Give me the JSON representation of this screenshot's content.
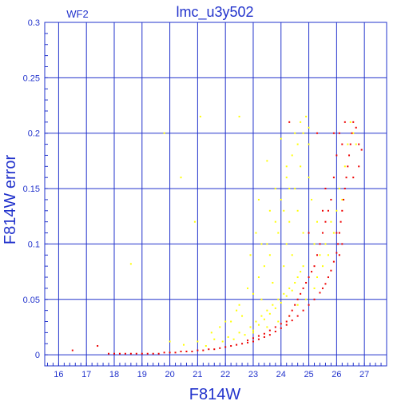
{
  "chart_data": {
    "type": "scatter",
    "title": "lmc_u3y502",
    "corner_label": "WF2",
    "xlabel": "F814W",
    "ylabel": "F814W error",
    "xlim": [
      15.5,
      27.8
    ],
    "ylim": [
      -0.01,
      0.3
    ],
    "xticks": [
      16,
      17,
      18,
      19,
      20,
      21,
      22,
      23,
      24,
      25,
      26,
      27
    ],
    "yticks": [
      0,
      0.05,
      0.1,
      0.15,
      0.2,
      0.25,
      0.3
    ],
    "ytick_labels": [
      "0",
      "0.05",
      "0.1",
      "0.15",
      "0.2",
      "0.25",
      "0.3"
    ],
    "grid": true,
    "colors": {
      "axes": "#2233cc",
      "grid": "#2233cc",
      "series_yellow": "#ffff00",
      "series_red": "#ee0000"
    },
    "series": [
      {
        "color": "#ffff00",
        "points": [
          [
            20.0,
            0.012
          ],
          [
            20.5,
            0.009
          ],
          [
            21.0,
            0.012
          ],
          [
            21.3,
            0.008
          ],
          [
            21.6,
            0.014
          ],
          [
            21.9,
            0.012
          ],
          [
            22.1,
            0.016
          ],
          [
            22.3,
            0.014
          ],
          [
            22.5,
            0.02
          ],
          [
            22.7,
            0.018
          ],
          [
            22.9,
            0.025
          ],
          [
            23.0,
            0.022
          ],
          [
            23.1,
            0.03
          ],
          [
            23.2,
            0.027
          ],
          [
            23.3,
            0.035
          ],
          [
            23.4,
            0.032
          ],
          [
            23.5,
            0.04
          ],
          [
            23.6,
            0.037
          ],
          [
            23.7,
            0.045
          ],
          [
            23.8,
            0.042
          ],
          [
            23.9,
            0.05
          ],
          [
            24.0,
            0.047
          ],
          [
            24.1,
            0.055
          ],
          [
            24.2,
            0.053
          ],
          [
            24.3,
            0.06
          ],
          [
            24.4,
            0.058
          ],
          [
            24.5,
            0.065
          ],
          [
            24.6,
            0.07
          ],
          [
            24.7,
            0.075
          ],
          [
            24.8,
            0.08
          ],
          [
            22.5,
            0.045
          ],
          [
            22.8,
            0.06
          ],
          [
            23.0,
            0.055
          ],
          [
            23.2,
            0.07
          ],
          [
            23.4,
            0.08
          ],
          [
            23.5,
            0.1
          ],
          [
            23.6,
            0.09
          ],
          [
            23.8,
            0.12
          ],
          [
            23.9,
            0.11
          ],
          [
            24.0,
            0.14
          ],
          [
            24.1,
            0.13
          ],
          [
            24.2,
            0.16
          ],
          [
            24.3,
            0.15
          ],
          [
            24.4,
            0.18
          ],
          [
            24.5,
            0.2
          ],
          [
            24.6,
            0.19
          ],
          [
            24.7,
            0.21
          ],
          [
            24.8,
            0.2
          ],
          [
            24.9,
            0.215
          ],
          [
            25.0,
            0.205
          ],
          [
            24.2,
            0.1
          ],
          [
            24.3,
            0.12
          ],
          [
            24.4,
            0.09
          ],
          [
            24.6,
            0.13
          ],
          [
            24.8,
            0.11
          ],
          [
            25.0,
            0.16
          ],
          [
            25.1,
            0.14
          ],
          [
            25.2,
            0.1
          ],
          [
            25.3,
            0.12
          ],
          [
            25.4,
            0.09
          ],
          [
            22.2,
            0.03
          ],
          [
            22.4,
            0.04
          ],
          [
            22.6,
            0.035
          ],
          [
            23.3,
            0.05
          ],
          [
            23.7,
            0.065
          ],
          [
            24.1,
            0.08
          ],
          [
            21.5,
            0.02
          ],
          [
            21.8,
            0.025
          ],
          [
            22.0,
            0.03
          ],
          [
            19.8,
            0.2
          ],
          [
            20.4,
            0.16
          ],
          [
            20.9,
            0.12
          ],
          [
            18.6,
            0.082
          ],
          [
            21.1,
            0.215
          ],
          [
            22.5,
            0.215
          ],
          [
            23.2,
            0.14
          ],
          [
            23.5,
            0.175
          ],
          [
            24.0,
            0.195
          ],
          [
            25.5,
            0.08
          ],
          [
            25.6,
            0.1
          ],
          [
            25.7,
            0.09
          ],
          [
            25.8,
            0.12
          ],
          [
            25.9,
            0.11
          ],
          [
            26.0,
            0.13
          ],
          [
            26.1,
            0.15
          ],
          [
            26.2,
            0.14
          ],
          [
            26.3,
            0.17
          ],
          [
            26.4,
            0.19
          ],
          [
            26.5,
            0.21
          ],
          [
            26.6,
            0.2
          ],
          [
            26.7,
            0.19
          ],
          [
            22.9,
            0.09
          ],
          [
            23.1,
            0.11
          ],
          [
            23.3,
            0.1
          ],
          [
            23.6,
            0.13
          ],
          [
            23.8,
            0.15
          ],
          [
            24.2,
            0.17
          ],
          [
            24.5,
            0.15
          ],
          [
            24.7,
            0.17
          ],
          [
            25.0,
            0.19
          ],
          [
            25.2,
            0.06
          ],
          [
            25.3,
            0.07
          ],
          [
            24.9,
            0.05
          ],
          [
            24.6,
            0.045
          ],
          [
            24.3,
            0.035
          ],
          [
            23.9,
            0.03
          ],
          [
            23.5,
            0.025
          ],
          [
            23.0,
            0.02
          ]
        ]
      },
      {
        "color": "#ee0000",
        "points": [
          [
            16.5,
            0.004
          ],
          [
            17.4,
            0.008
          ],
          [
            17.8,
            0.001
          ],
          [
            18.0,
            0.001
          ],
          [
            18.2,
            0.001
          ],
          [
            18.4,
            0.001
          ],
          [
            18.6,
            0.001
          ],
          [
            18.8,
            0.001
          ],
          [
            19.0,
            0.001
          ],
          [
            19.2,
            0.001
          ],
          [
            19.4,
            0.001
          ],
          [
            19.6,
            0.001
          ],
          [
            19.8,
            0.002
          ],
          [
            20.0,
            0.002
          ],
          [
            20.2,
            0.002
          ],
          [
            20.4,
            0.003
          ],
          [
            20.6,
            0.003
          ],
          [
            20.8,
            0.003
          ],
          [
            21.0,
            0.004
          ],
          [
            21.2,
            0.004
          ],
          [
            21.4,
            0.005
          ],
          [
            21.6,
            0.005
          ],
          [
            21.8,
            0.006
          ],
          [
            22.0,
            0.007
          ],
          [
            22.2,
            0.008
          ],
          [
            22.4,
            0.009
          ],
          [
            22.6,
            0.01
          ],
          [
            22.8,
            0.011
          ],
          [
            23.0,
            0.012
          ],
          [
            23.2,
            0.014
          ],
          [
            23.4,
            0.016
          ],
          [
            23.6,
            0.018
          ],
          [
            23.8,
            0.021
          ],
          [
            24.0,
            0.024
          ],
          [
            24.2,
            0.027
          ],
          [
            24.4,
            0.031
          ],
          [
            24.6,
            0.035
          ],
          [
            24.8,
            0.04
          ],
          [
            25.0,
            0.045
          ],
          [
            25.2,
            0.05
          ],
          [
            25.4,
            0.056
          ],
          [
            25.5,
            0.06
          ],
          [
            25.6,
            0.064
          ],
          [
            25.7,
            0.07
          ],
          [
            25.8,
            0.076
          ],
          [
            25.9,
            0.084
          ],
          [
            26.0,
            0.092
          ],
          [
            26.05,
            0.1
          ],
          [
            26.1,
            0.11
          ],
          [
            26.15,
            0.12
          ],
          [
            26.2,
            0.13
          ],
          [
            26.25,
            0.14
          ],
          [
            26.3,
            0.15
          ],
          [
            26.35,
            0.16
          ],
          [
            26.4,
            0.17
          ],
          [
            26.45,
            0.18
          ],
          [
            26.5,
            0.19
          ],
          [
            26.55,
            0.2
          ],
          [
            26.6,
            0.21
          ],
          [
            26.7,
            0.205
          ],
          [
            26.8,
            0.19
          ],
          [
            26.9,
            0.185
          ],
          [
            26.3,
            0.21
          ],
          [
            26.1,
            0.2
          ],
          [
            26.0,
            0.18
          ],
          [
            25.9,
            0.16
          ],
          [
            25.8,
            0.14
          ],
          [
            25.7,
            0.13
          ],
          [
            25.6,
            0.12
          ],
          [
            25.5,
            0.11
          ],
          [
            25.4,
            0.1
          ],
          [
            25.3,
            0.09
          ],
          [
            25.2,
            0.08
          ],
          [
            25.1,
            0.075
          ],
          [
            25.0,
            0.07
          ],
          [
            24.9,
            0.065
          ],
          [
            24.8,
            0.06
          ],
          [
            24.7,
            0.055
          ],
          [
            24.6,
            0.05
          ],
          [
            24.5,
            0.045
          ],
          [
            24.4,
            0.04
          ],
          [
            24.3,
            0.035
          ],
          [
            24.2,
            0.03
          ],
          [
            24.0,
            0.028
          ],
          [
            23.8,
            0.025
          ],
          [
            23.6,
            0.022
          ],
          [
            23.4,
            0.019
          ],
          [
            23.2,
            0.017
          ],
          [
            23.0,
            0.015
          ],
          [
            22.8,
            0.013
          ],
          [
            25.3,
            0.2
          ],
          [
            25.5,
            0.13
          ],
          [
            25.9,
            0.2
          ],
          [
            26.2,
            0.19
          ],
          [
            26.6,
            0.16
          ],
          [
            26.8,
            0.17
          ],
          [
            24.3,
            0.21
          ],
          [
            25.0,
            0.11
          ],
          [
            25.6,
            0.15
          ],
          [
            26.0,
            0.11
          ],
          [
            26.1,
            0.09
          ],
          [
            26.2,
            0.1
          ]
        ]
      }
    ]
  }
}
